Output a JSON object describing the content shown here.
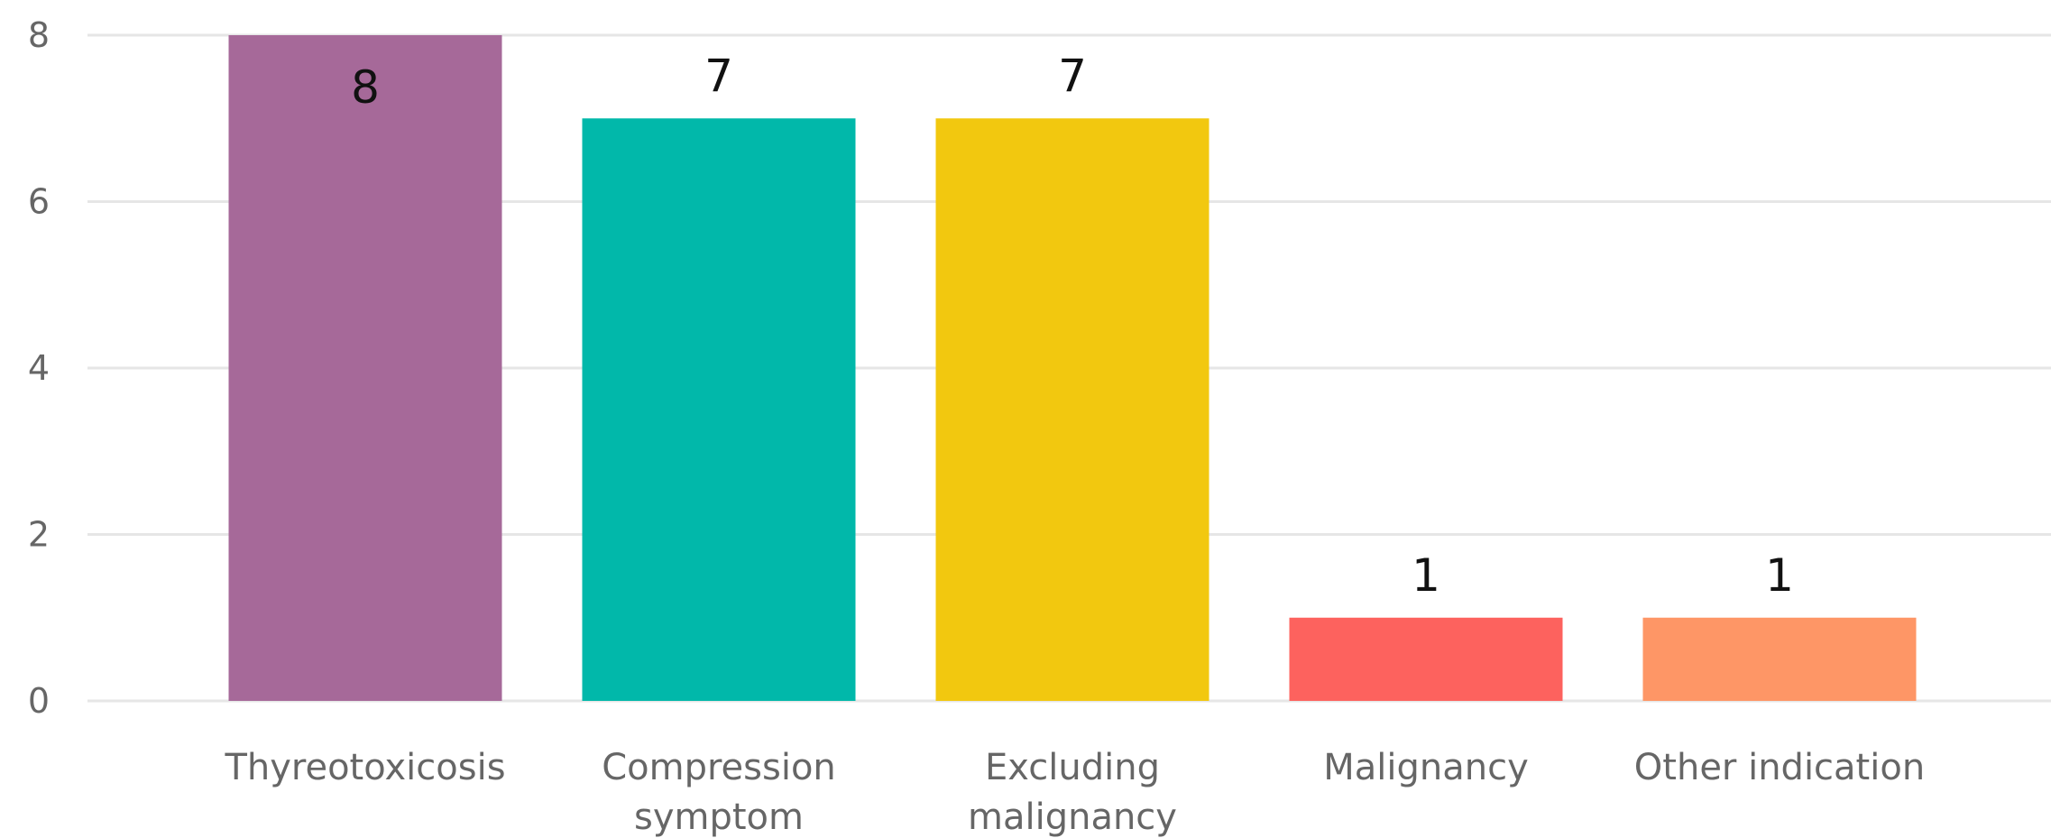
{
  "chart_data": {
    "type": "bar",
    "categories": [
      "Thyreotoxicosis",
      "Compression symptom",
      "Excluding malignancy",
      "Malignancy",
      "Other indication"
    ],
    "category_lines": [
      [
        "Thyreotoxicosis"
      ],
      [
        "Compression",
        "symptom"
      ],
      [
        "Excluding",
        "malignancy"
      ],
      [
        "Malignancy"
      ],
      [
        "Other indication"
      ]
    ],
    "values": [
      8,
      7,
      7,
      1,
      1
    ],
    "data_labels": [
      "8",
      "7",
      "7",
      "1",
      "1"
    ],
    "colors": [
      "#a66999",
      "#01b8aa",
      "#f2c80f",
      "#fd625e",
      "#fe9666"
    ],
    "yticks": [
      0,
      2,
      4,
      6,
      8
    ],
    "ylim": [
      0,
      8
    ],
    "grid": true,
    "legend": "none",
    "title": "",
    "xlabel": "",
    "ylabel": ""
  }
}
